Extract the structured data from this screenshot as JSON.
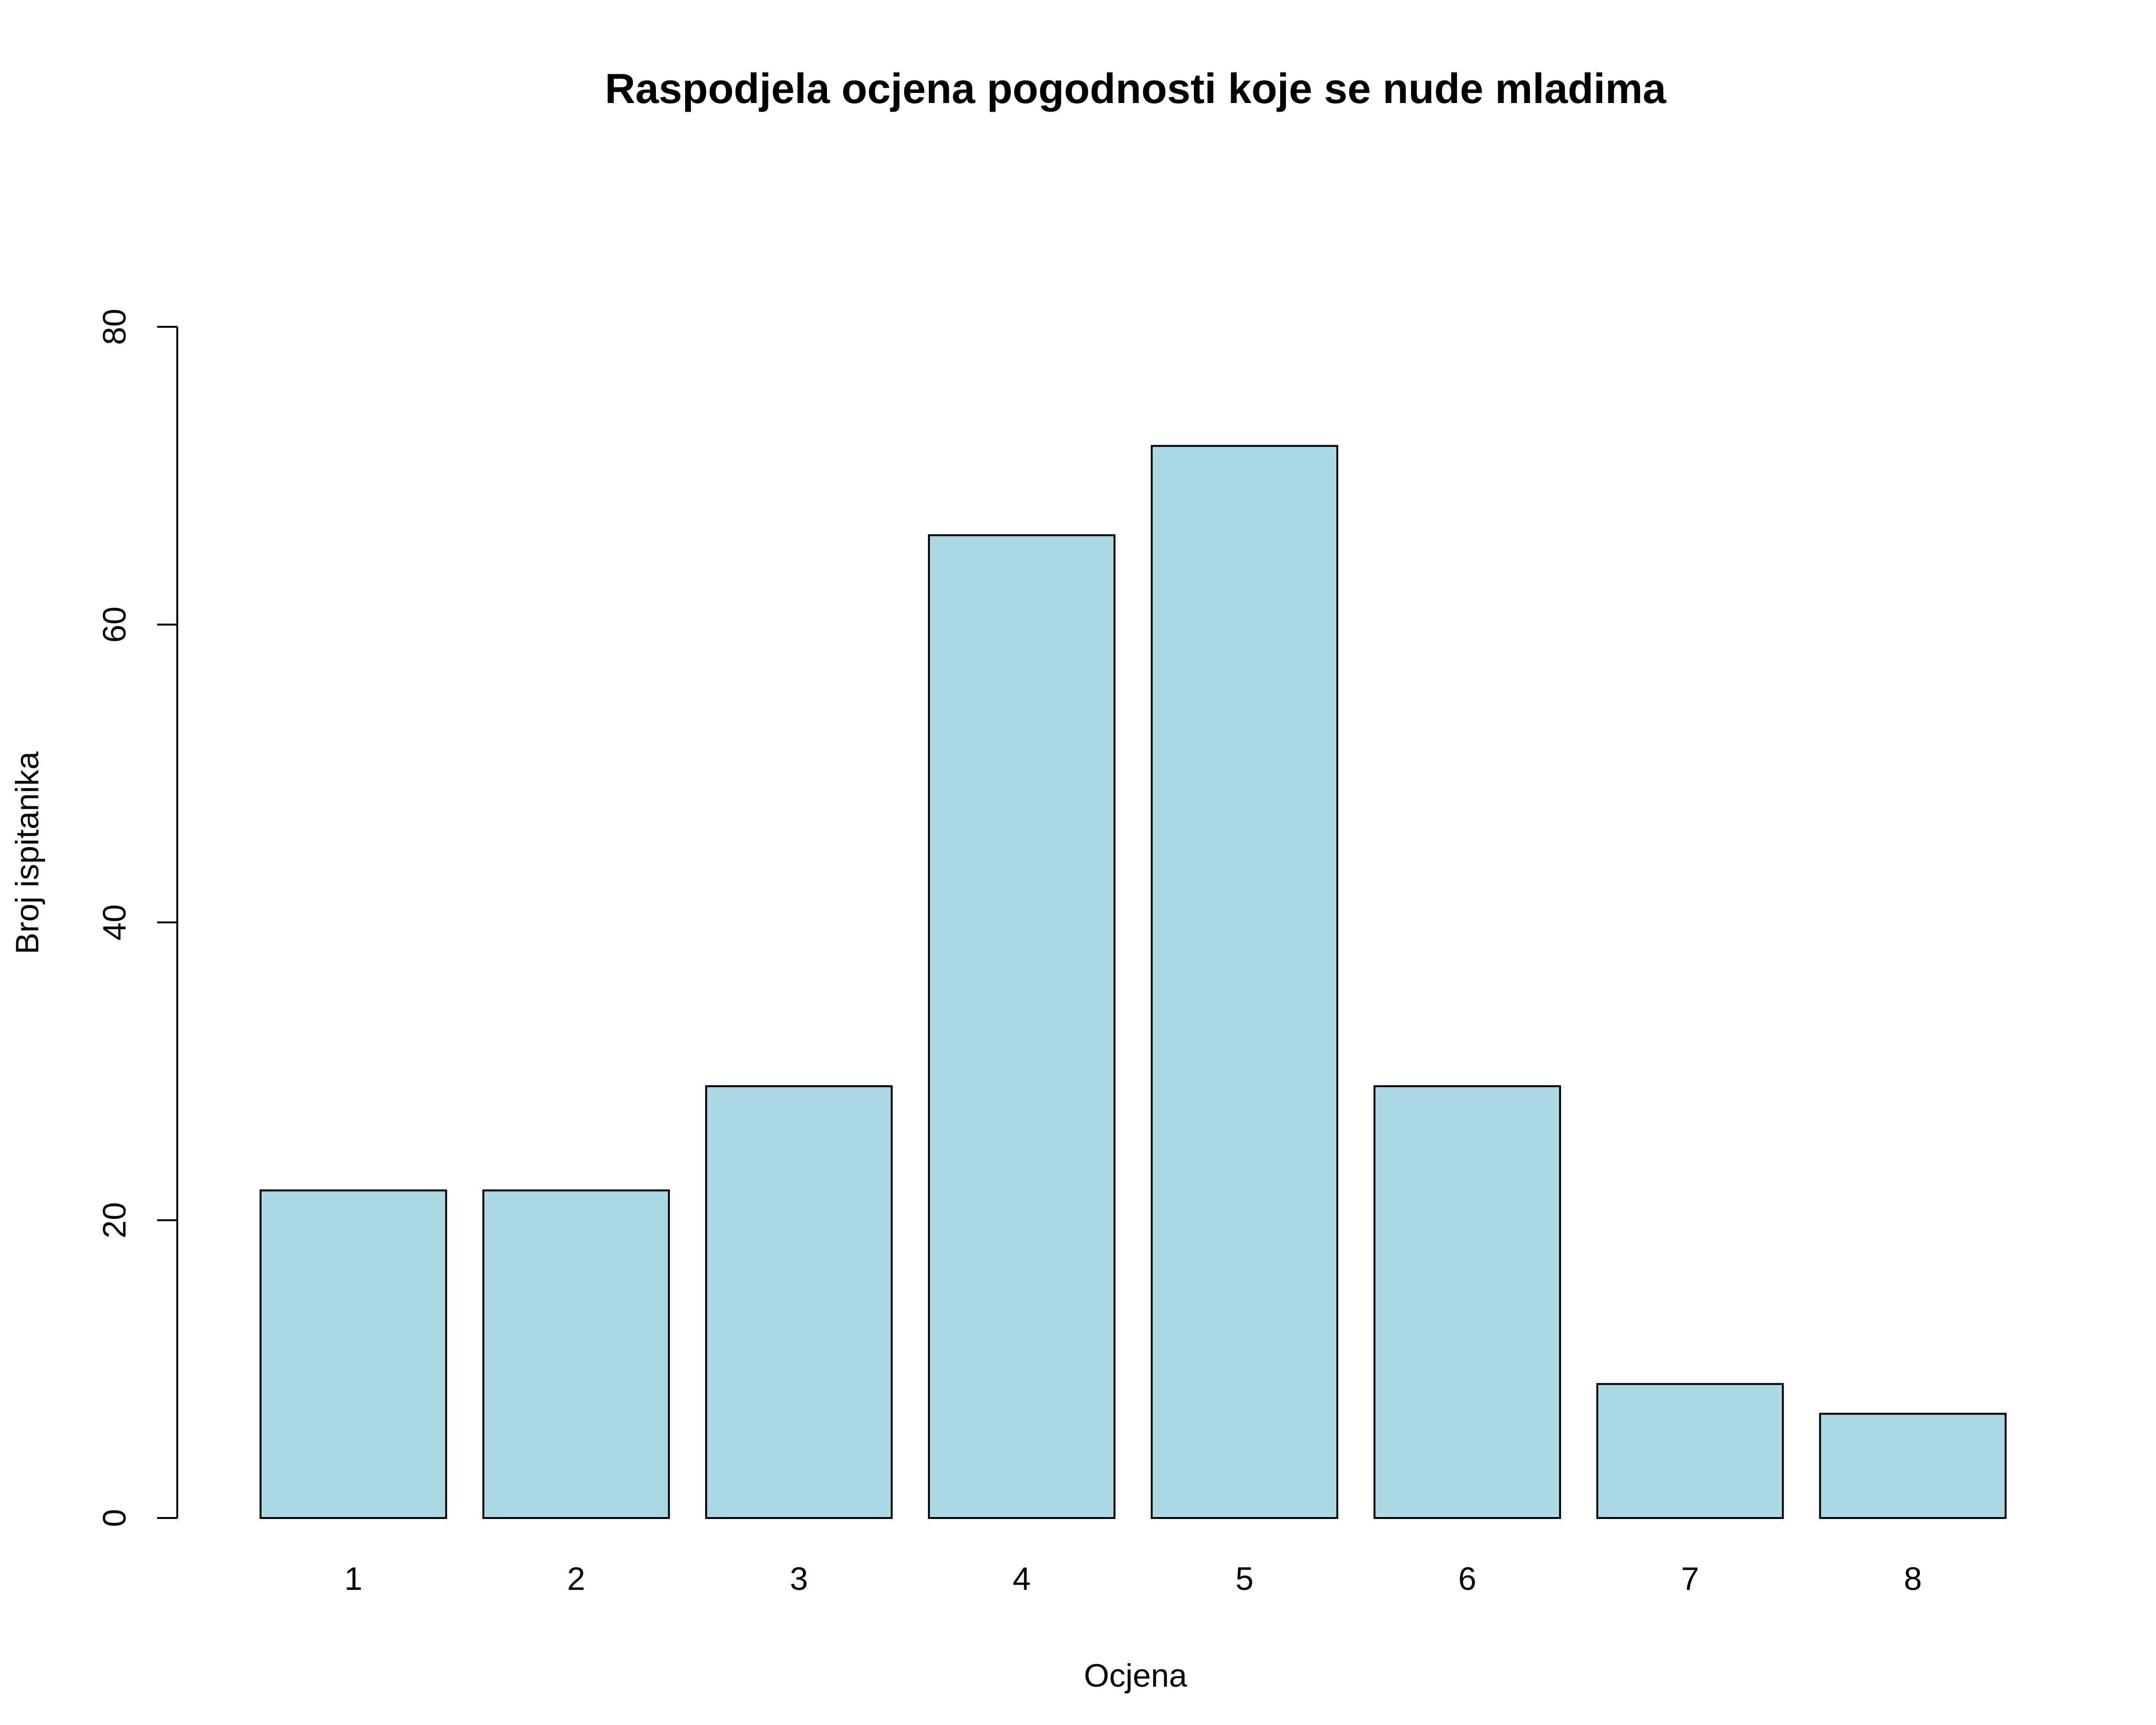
{
  "chart_data": {
    "type": "bar",
    "title": "Raspodjela ocjena pogodnosti koje se nude mladima",
    "xlabel": "Ocjena",
    "ylabel": "Broj ispitanika",
    "categories": [
      "1",
      "2",
      "3",
      "4",
      "5",
      "6",
      "7",
      "8"
    ],
    "values": [
      22,
      22,
      29,
      66,
      72,
      29,
      9,
      7
    ],
    "ylim": [
      0,
      80
    ],
    "yticks": [
      0,
      20,
      40,
      60,
      80
    ],
    "grid": false,
    "legend": "none",
    "bar_color": "#add8e6",
    "border_color": "#000000"
  }
}
